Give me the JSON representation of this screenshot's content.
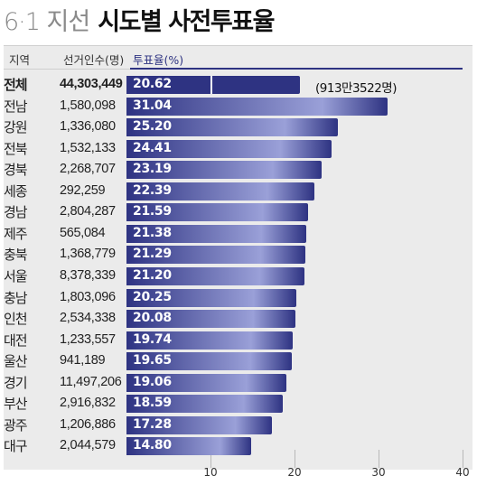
{
  "title": {
    "prefix": "6·1 지선",
    "main": "시도별 사전투표율"
  },
  "headers": {
    "region": "지역",
    "voters": "선거인수(명)",
    "rate": "투표율(%)"
  },
  "total_note": "(913만3522명)",
  "colors": {
    "bar_dark": "#2e3382",
    "bar_light": "#9aa0d8",
    "frame": "#ebebeb"
  },
  "chart_data": {
    "type": "bar",
    "orientation": "horizontal",
    "categories": [
      "전체",
      "전남",
      "강원",
      "전북",
      "경북",
      "세종",
      "경남",
      "제주",
      "충북",
      "서울",
      "충남",
      "인천",
      "대전",
      "울산",
      "경기",
      "부산",
      "광주",
      "대구"
    ],
    "voters": [
      "44,303,449",
      "1,580,098",
      "1,336,080",
      "1,532,133",
      "2,268,707",
      "292,259",
      "2,804,287",
      "565,084",
      "1,368,779",
      "8,378,339",
      "1,803,096",
      "2,534,338",
      "1,233,557",
      "941,189",
      "11,497,206",
      "2,916,832",
      "1,206,886",
      "2,044,579"
    ],
    "values": [
      20.62,
      31.04,
      25.2,
      24.41,
      23.19,
      22.39,
      21.59,
      21.38,
      21.29,
      21.2,
      20.25,
      20.08,
      19.74,
      19.65,
      19.06,
      18.59,
      17.28,
      14.8
    ],
    "value_labels": [
      "20.62",
      "31.04",
      "25.20",
      "24.41",
      "23.19",
      "22.39",
      "21.59",
      "21.38",
      "21.29",
      "21.20",
      "20.25",
      "20.08",
      "19.74",
      "19.65",
      "19.06",
      "18.59",
      "17.28",
      "14.80"
    ],
    "xlim": [
      0,
      40
    ],
    "xticks": [
      "10",
      "20",
      "30",
      "40"
    ],
    "xtick_values": [
      10,
      20,
      30,
      40
    ],
    "xlabel": "",
    "ylabel": ""
  }
}
